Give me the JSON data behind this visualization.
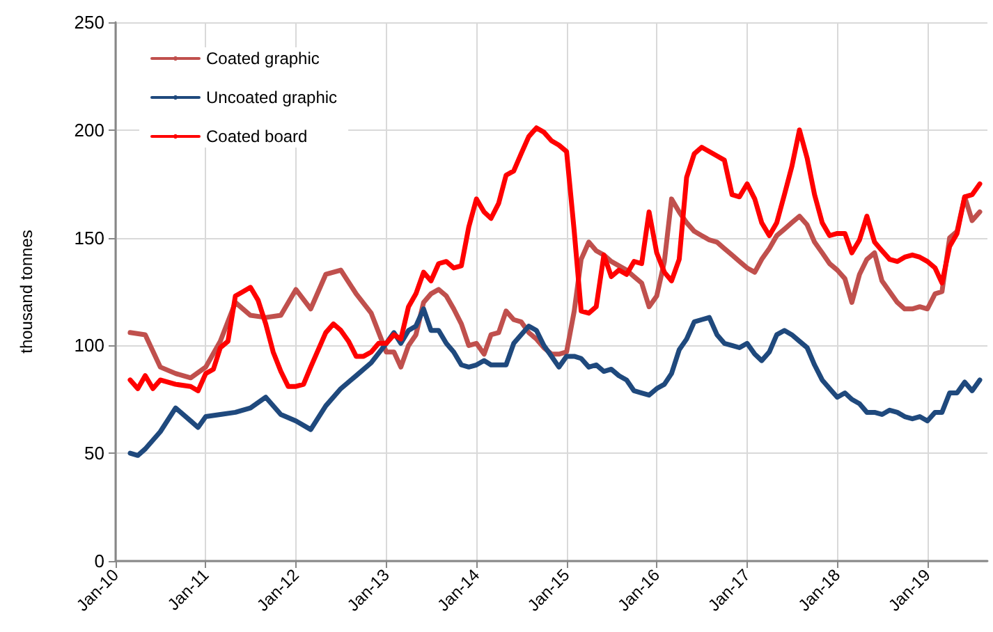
{
  "chart_data": {
    "type": "line",
    "ylabel": "thousand tonnes",
    "xlim": [
      "2010-01",
      "2019-09"
    ],
    "ylim": [
      0,
      250
    ],
    "yticks": [
      0,
      50,
      100,
      150,
      200,
      250
    ],
    "xticks": [
      {
        "value": "2010-01",
        "label": "Jan-10"
      },
      {
        "value": "2011-01",
        "label": "Jan-11"
      },
      {
        "value": "2012-01",
        "label": "Jan-12"
      },
      {
        "value": "2013-01",
        "label": "Jan-13"
      },
      {
        "value": "2014-01",
        "label": "Jan-14"
      },
      {
        "value": "2015-01",
        "label": "Jan-15"
      },
      {
        "value": "2016-01",
        "label": "Jan-16"
      },
      {
        "value": "2017-01",
        "label": "Jan-17"
      },
      {
        "value": "2018-01",
        "label": "Jan-18"
      },
      {
        "value": "2019-01",
        "label": "Jan-19"
      }
    ],
    "grid": true,
    "legend": "top left",
    "marker": "none",
    "line_style": "solid",
    "series": [
      {
        "name": "Coated graphic",
        "color": "#c0504d",
        "x": [
          "2010-03",
          "2010-05",
          "2010-07",
          "2010-09",
          "2010-11",
          "2011-01",
          "2011-03",
          "2011-05",
          "2011-07",
          "2011-09",
          "2011-11",
          "2012-01",
          "2012-03",
          "2012-05",
          "2012-07",
          "2012-09",
          "2012-11",
          "2013-01",
          "2013-02",
          "2013-03",
          "2013-04",
          "2013-05",
          "2013-06",
          "2013-07",
          "2013-08",
          "2013-09",
          "2013-10",
          "2013-11",
          "2013-12",
          "2014-01",
          "2014-02",
          "2014-03",
          "2014-04",
          "2014-05",
          "2014-06",
          "2014-07",
          "2014-08",
          "2014-09",
          "2014-10",
          "2014-11",
          "2014-12",
          "2015-01",
          "2015-02",
          "2015-03",
          "2015-04",
          "2015-05",
          "2015-06",
          "2015-07",
          "2015-08",
          "2015-09",
          "2015-10",
          "2015-11",
          "2015-12",
          "2016-01",
          "2016-02",
          "2016-03",
          "2016-04",
          "2016-05",
          "2016-06",
          "2016-07",
          "2016-08",
          "2016-09",
          "2016-10",
          "2016-11",
          "2016-12",
          "2017-01",
          "2017-02",
          "2017-03",
          "2017-04",
          "2017-05",
          "2017-06",
          "2017-07",
          "2017-08",
          "2017-09",
          "2017-10",
          "2017-11",
          "2017-12",
          "2018-01",
          "2018-02",
          "2018-03",
          "2018-04",
          "2018-05",
          "2018-06",
          "2018-07",
          "2018-08",
          "2018-09",
          "2018-10",
          "2018-11",
          "2018-12",
          "2019-01",
          "2019-02",
          "2019-03",
          "2019-04",
          "2019-05",
          "2019-06",
          "2019-07",
          "2019-08"
        ],
        "values": [
          106,
          105,
          90,
          87,
          85,
          90,
          102,
          120,
          114,
          113,
          114,
          126,
          117,
          133,
          135,
          124,
          115,
          97,
          97,
          90,
          100,
          105,
          120,
          124,
          126,
          123,
          117,
          110,
          100,
          101,
          96,
          105,
          106,
          116,
          112,
          111,
          106,
          103,
          99,
          96,
          96,
          97,
          116,
          140,
          148,
          144,
          142,
          139,
          137,
          135,
          132,
          129,
          118,
          123,
          139,
          168,
          162,
          157,
          153,
          151,
          149,
          148,
          145,
          142,
          139,
          136,
          134,
          140,
          145,
          151,
          154,
          157,
          160,
          156,
          148,
          143,
          138,
          135,
          131,
          120,
          133,
          140,
          143,
          130,
          125,
          120,
          117,
          117,
          118,
          117,
          124,
          125,
          150,
          153,
          169,
          158,
          162
        ]
      },
      {
        "name": "Uncoated graphic",
        "color": "#1f497d",
        "x": [
          "2010-03",
          "2010-04",
          "2010-05",
          "2010-07",
          "2010-09",
          "2010-11",
          "2010-12",
          "2011-01",
          "2011-03",
          "2011-05",
          "2011-07",
          "2011-09",
          "2011-11",
          "2012-01",
          "2012-03",
          "2012-05",
          "2012-07",
          "2012-09",
          "2012-11",
          "2013-01",
          "2013-02",
          "2013-03",
          "2013-04",
          "2013-05",
          "2013-06",
          "2013-07",
          "2013-08",
          "2013-09",
          "2013-10",
          "2013-11",
          "2013-12",
          "2014-01",
          "2014-02",
          "2014-03",
          "2014-04",
          "2014-05",
          "2014-06",
          "2014-07",
          "2014-08",
          "2014-09",
          "2014-10",
          "2014-11",
          "2014-12",
          "2015-01",
          "2015-02",
          "2015-03",
          "2015-04",
          "2015-05",
          "2015-06",
          "2015-07",
          "2015-08",
          "2015-09",
          "2015-10",
          "2015-11",
          "2015-12",
          "2016-01",
          "2016-02",
          "2016-03",
          "2016-04",
          "2016-05",
          "2016-06",
          "2016-07",
          "2016-08",
          "2016-09",
          "2016-10",
          "2016-11",
          "2016-12",
          "2017-01",
          "2017-02",
          "2017-03",
          "2017-04",
          "2017-05",
          "2017-06",
          "2017-07",
          "2017-08",
          "2017-09",
          "2017-10",
          "2017-11",
          "2017-12",
          "2018-01",
          "2018-02",
          "2018-03",
          "2018-04",
          "2018-05",
          "2018-06",
          "2018-07",
          "2018-08",
          "2018-09",
          "2018-10",
          "2018-11",
          "2018-12",
          "2019-01",
          "2019-02",
          "2019-03",
          "2019-04",
          "2019-05",
          "2019-06",
          "2019-07",
          "2019-08"
        ],
        "values": [
          50,
          49,
          52,
          60,
          71,
          65,
          62,
          67,
          68,
          69,
          71,
          76,
          68,
          65,
          61,
          72,
          80,
          86,
          92,
          101,
          106,
          101,
          107,
          109,
          117,
          107,
          107,
          101,
          97,
          91,
          90,
          91,
          93,
          91,
          91,
          91,
          101,
          105,
          109,
          107,
          100,
          95,
          90,
          95,
          95,
          94,
          90,
          91,
          88,
          89,
          86,
          84,
          79,
          78,
          77,
          80,
          82,
          87,
          98,
          103,
          111,
          112,
          113,
          105,
          101,
          100,
          99,
          101,
          96,
          93,
          97,
          105,
          107,
          105,
          102,
          99,
          91,
          84,
          80,
          76,
          78,
          75,
          73,
          69,
          69,
          68,
          70,
          69,
          67,
          66,
          67,
          65,
          69,
          69,
          78,
          78,
          83,
          79,
          84
        ]
      },
      {
        "name": "Coated board",
        "color": "#ff0000",
        "x": [
          "2010-03",
          "2010-04",
          "2010-05",
          "2010-06",
          "2010-07",
          "2010-09",
          "2010-11",
          "2010-12",
          "2011-01",
          "2011-02",
          "2011-03",
          "2011-04",
          "2011-05",
          "2011-06",
          "2011-07",
          "2011-08",
          "2011-09",
          "2011-10",
          "2011-11",
          "2011-12",
          "2012-01",
          "2012-02",
          "2012-03",
          "2012-05",
          "2012-06",
          "2012-07",
          "2012-08",
          "2012-09",
          "2012-10",
          "2012-11",
          "2012-12",
          "2013-01",
          "2013-02",
          "2013-03",
          "2013-04",
          "2013-05",
          "2013-06",
          "2013-07",
          "2013-08",
          "2013-09",
          "2013-10",
          "2013-11",
          "2013-12",
          "2014-01",
          "2014-02",
          "2014-03",
          "2014-04",
          "2014-05",
          "2014-06",
          "2014-07",
          "2014-08",
          "2014-09",
          "2014-10",
          "2014-11",
          "2014-12",
          "2015-01",
          "2015-02",
          "2015-03",
          "2015-04",
          "2015-05",
          "2015-06",
          "2015-07",
          "2015-08",
          "2015-09",
          "2015-10",
          "2015-11",
          "2015-12",
          "2016-01",
          "2016-02",
          "2016-03",
          "2016-04",
          "2016-05",
          "2016-06",
          "2016-07",
          "2016-08",
          "2016-09",
          "2016-10",
          "2016-11",
          "2016-12",
          "2017-01",
          "2017-02",
          "2017-03",
          "2017-04",
          "2017-05",
          "2017-06",
          "2017-07",
          "2017-08",
          "2017-09",
          "2017-10",
          "2017-11",
          "2017-12",
          "2018-01",
          "2018-02",
          "2018-03",
          "2018-04",
          "2018-05",
          "2018-06",
          "2018-07",
          "2018-08",
          "2018-09",
          "2018-10",
          "2018-11",
          "2018-12",
          "2019-01",
          "2019-02",
          "2019-03",
          "2019-04",
          "2019-05",
          "2019-06",
          "2019-07",
          "2019-08"
        ],
        "values": [
          84,
          80,
          86,
          80,
          84,
          82,
          81,
          79,
          87,
          89,
          99,
          102,
          123,
          125,
          127,
          121,
          110,
          97,
          88,
          81,
          81,
          82,
          90,
          106,
          110,
          107,
          102,
          95,
          95,
          97,
          101,
          101,
          105,
          103,
          118,
          124,
          134,
          130,
          138,
          139,
          136,
          137,
          155,
          168,
          162,
          159,
          166,
          179,
          181,
          189,
          197,
          201,
          199,
          195,
          193,
          190,
          153,
          116,
          115,
          118,
          142,
          132,
          135,
          133,
          139,
          138,
          162,
          143,
          134,
          130,
          140,
          178,
          189,
          192,
          190,
          188,
          186,
          170,
          169,
          175,
          168,
          157,
          151,
          157,
          170,
          183,
          200,
          187,
          170,
          157,
          151,
          152,
          152,
          143,
          149,
          160,
          148,
          144,
          140,
          139,
          141,
          142,
          141,
          139,
          136,
          129,
          146,
          152,
          169,
          170,
          175
        ]
      }
    ]
  }
}
